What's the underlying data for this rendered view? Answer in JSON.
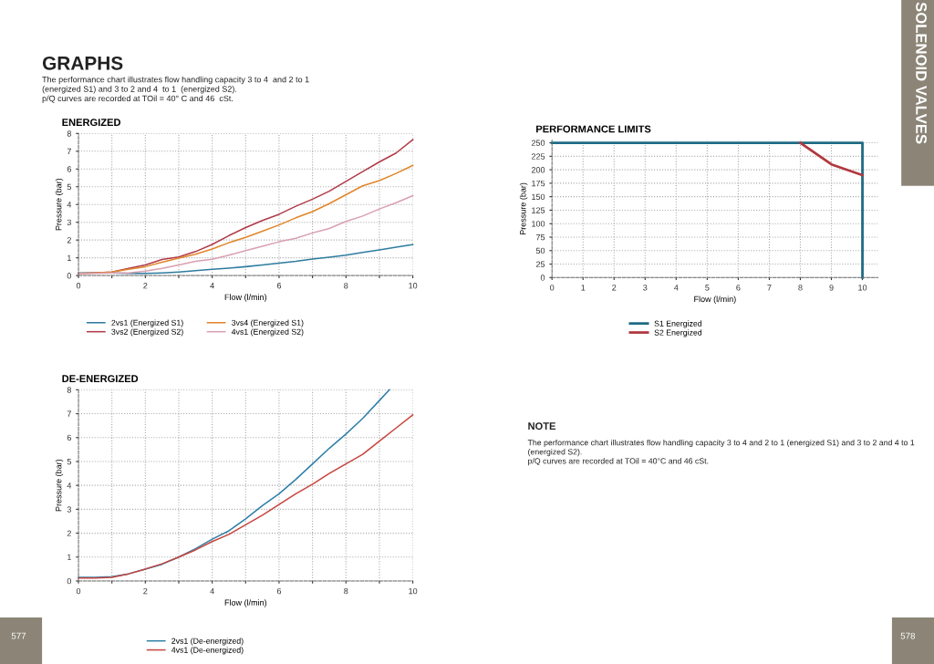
{
  "chart_data": [
    {
      "type": "other",
      "title": "GRAPHS",
      "subtitle": "The performance chart illustrates flow handling capacity 3 to 4  and 2 to 1\n(energized S1) and 3 to 2 and 4  to 1  (energized S2).\np/Q curves are recorded at TOil = 40° C and 46  cSt.",
      "annotations": [
        "SOLENOID VALVES",
        "577",
        "578"
      ]
    },
    {
      "type": "line",
      "title": "ENERGIZED",
      "xlabel": "Flow (l/min)",
      "ylabel": "Pressure (bar)",
      "xlim": [
        0,
        10
      ],
      "ylim": [
        0,
        8
      ],
      "xticks": [
        0,
        {
          "value": 1,
          "label": null
        },
        2,
        {
          "value": 3,
          "label": null
        },
        4,
        {
          "value": 5,
          "label": null
        },
        6,
        {
          "value": 7,
          "label": null
        },
        8,
        {
          "value": 9,
          "label": null
        },
        10
      ],
      "yticks": [
        0,
        1,
        2,
        3,
        4,
        5,
        6,
        7,
        8
      ],
      "grid": true,
      "legend": "bottom",
      "series": [
        {
          "name": "2vs1 (Energized S1)",
          "color": "#2e7ca0",
          "x": [
            0,
            0.5,
            1,
            1.5,
            2,
            2.5,
            3,
            3.5,
            4,
            4.5,
            5,
            5.5,
            6,
            6.5,
            7,
            7.5,
            8,
            8.5,
            9,
            9.5,
            10
          ],
          "values": [
            0.15,
            0.15,
            0.15,
            0.12,
            0.12,
            0.15,
            0.2,
            0.27,
            0.35,
            0.42,
            0.5,
            0.6,
            0.7,
            0.8,
            0.93,
            1.03,
            1.15,
            1.3,
            1.45,
            1.6,
            1.75
          ]
        },
        {
          "name": "3vs2 (Energized S2)",
          "color": "#b03a48",
          "x": [
            0,
            0.5,
            1,
            1.5,
            2,
            2.5,
            3,
            3.5,
            4,
            4.5,
            5,
            5.5,
            6,
            6.5,
            7,
            7.5,
            8,
            8.5,
            9,
            9.5,
            10
          ],
          "values": [
            0.12,
            0.15,
            0.2,
            0.4,
            0.6,
            0.9,
            1.05,
            1.35,
            1.75,
            2.25,
            2.7,
            3.1,
            3.45,
            3.9,
            4.3,
            4.75,
            5.3,
            5.85,
            6.4,
            6.9,
            7.65
          ]
        },
        {
          "name": "3vs4 (Energized S1)",
          "color": "#e0862a",
          "x": [
            0,
            0.5,
            1,
            1.5,
            2,
            2.5,
            3,
            3.5,
            4,
            4.5,
            5,
            5.5,
            6,
            6.5,
            7,
            7.5,
            8,
            8.5,
            9,
            9.5,
            10
          ],
          "values": [
            0.12,
            0.15,
            0.2,
            0.35,
            0.5,
            0.75,
            0.98,
            1.2,
            1.5,
            1.85,
            2.15,
            2.5,
            2.85,
            3.25,
            3.6,
            4.05,
            4.55,
            5.05,
            5.35,
            5.75,
            6.2
          ]
        },
        {
          "name": "4vs1 (Energized S2)",
          "color": "#d8a0b0",
          "x": [
            0,
            0.5,
            1,
            1.5,
            2,
            2.5,
            3,
            3.5,
            4,
            4.5,
            5,
            5.5,
            6,
            6.5,
            7,
            7.5,
            8,
            8.5,
            9,
            9.5,
            10
          ],
          "values": [
            0.12,
            0.12,
            0.15,
            0.15,
            0.25,
            0.4,
            0.6,
            0.8,
            0.92,
            1.15,
            1.4,
            1.65,
            1.9,
            2.1,
            2.4,
            2.65,
            3.05,
            3.35,
            3.75,
            4.1,
            4.5
          ]
        }
      ]
    },
    {
      "type": "line",
      "title": "PERFORMANCE LIMITS",
      "xlabel": "Flow (l/min)",
      "ylabel": "Pressure (bar)",
      "xlim": [
        0,
        10.5
      ],
      "ylim": [
        0,
        255
      ],
      "xticks": [
        0,
        1,
        2,
        3,
        4,
        5,
        6,
        7,
        8,
        9,
        10
      ],
      "yticks": [
        0,
        25,
        50,
        75,
        100,
        125,
        150,
        175,
        200,
        225,
        250
      ],
      "grid": true,
      "legend": "bottom",
      "series": [
        {
          "name": "S1 Energized",
          "color": "#1f6b85",
          "x": [
            0,
            10,
            10
          ],
          "values": [
            250,
            250,
            0
          ]
        },
        {
          "name": "S2 Energized",
          "color": "#b0393f",
          "x": [
            8,
            9,
            10
          ],
          "values": [
            250,
            210,
            190
          ]
        }
      ]
    },
    {
      "type": "line",
      "title": "DE-ENERGIZED",
      "xlabel": "Flow (l/min)",
      "ylabel": "Pressure (bar)",
      "xlim": [
        0,
        10
      ],
      "ylim": [
        0,
        8
      ],
      "xticks": [
        0,
        {
          "value": 1,
          "label": null
        },
        2,
        {
          "value": 3,
          "label": null
        },
        4,
        {
          "value": 5,
          "label": null
        },
        6,
        {
          "value": 7,
          "label": null
        },
        8,
        {
          "value": 9,
          "label": null
        },
        10
      ],
      "yticks": [
        0,
        1,
        2,
        3,
        4,
        5,
        6,
        7,
        8
      ],
      "grid": true,
      "legend": "bottom",
      "series": [
        {
          "name": "2vs1 (De-energized)",
          "color": "#2f7fa8",
          "x": [
            0,
            0.5,
            1,
            1.5,
            2,
            2.5,
            3,
            3.5,
            4,
            4.5,
            5,
            5.5,
            6,
            6.5,
            7,
            7.5,
            8,
            8.5,
            9,
            9.3
          ],
          "values": [
            0.15,
            0.15,
            0.18,
            0.3,
            0.5,
            0.7,
            1.0,
            1.35,
            1.75,
            2.1,
            2.6,
            3.15,
            3.65,
            4.25,
            4.9,
            5.55,
            6.15,
            6.8,
            7.55,
            8.0
          ]
        },
        {
          "name": "4vs1 (De-energized)",
          "color": "#c7453f",
          "x": [
            0,
            0.5,
            1,
            1.5,
            2,
            2.5,
            3,
            3.5,
            4,
            4.5,
            5,
            5.5,
            6,
            6.5,
            7,
            7.5,
            8,
            8.5,
            9,
            9.5,
            10
          ],
          "values": [
            0.12,
            0.12,
            0.15,
            0.3,
            0.5,
            0.72,
            1.0,
            1.3,
            1.65,
            1.95,
            2.35,
            2.75,
            3.2,
            3.65,
            4.05,
            4.5,
            4.9,
            5.3,
            5.85,
            6.4,
            6.95
          ]
        }
      ]
    },
    {
      "type": "other",
      "title": "NOTE",
      "annotations": [
        "The performance chart illustrates flow handling capacity 3 to 4 and 2 to 1 (energized S1) and 3 to 2 and 4 to 1\n(energized S2).\np/Q curves are recorded at TOil = 40°C and 46 cSt."
      ]
    }
  ]
}
